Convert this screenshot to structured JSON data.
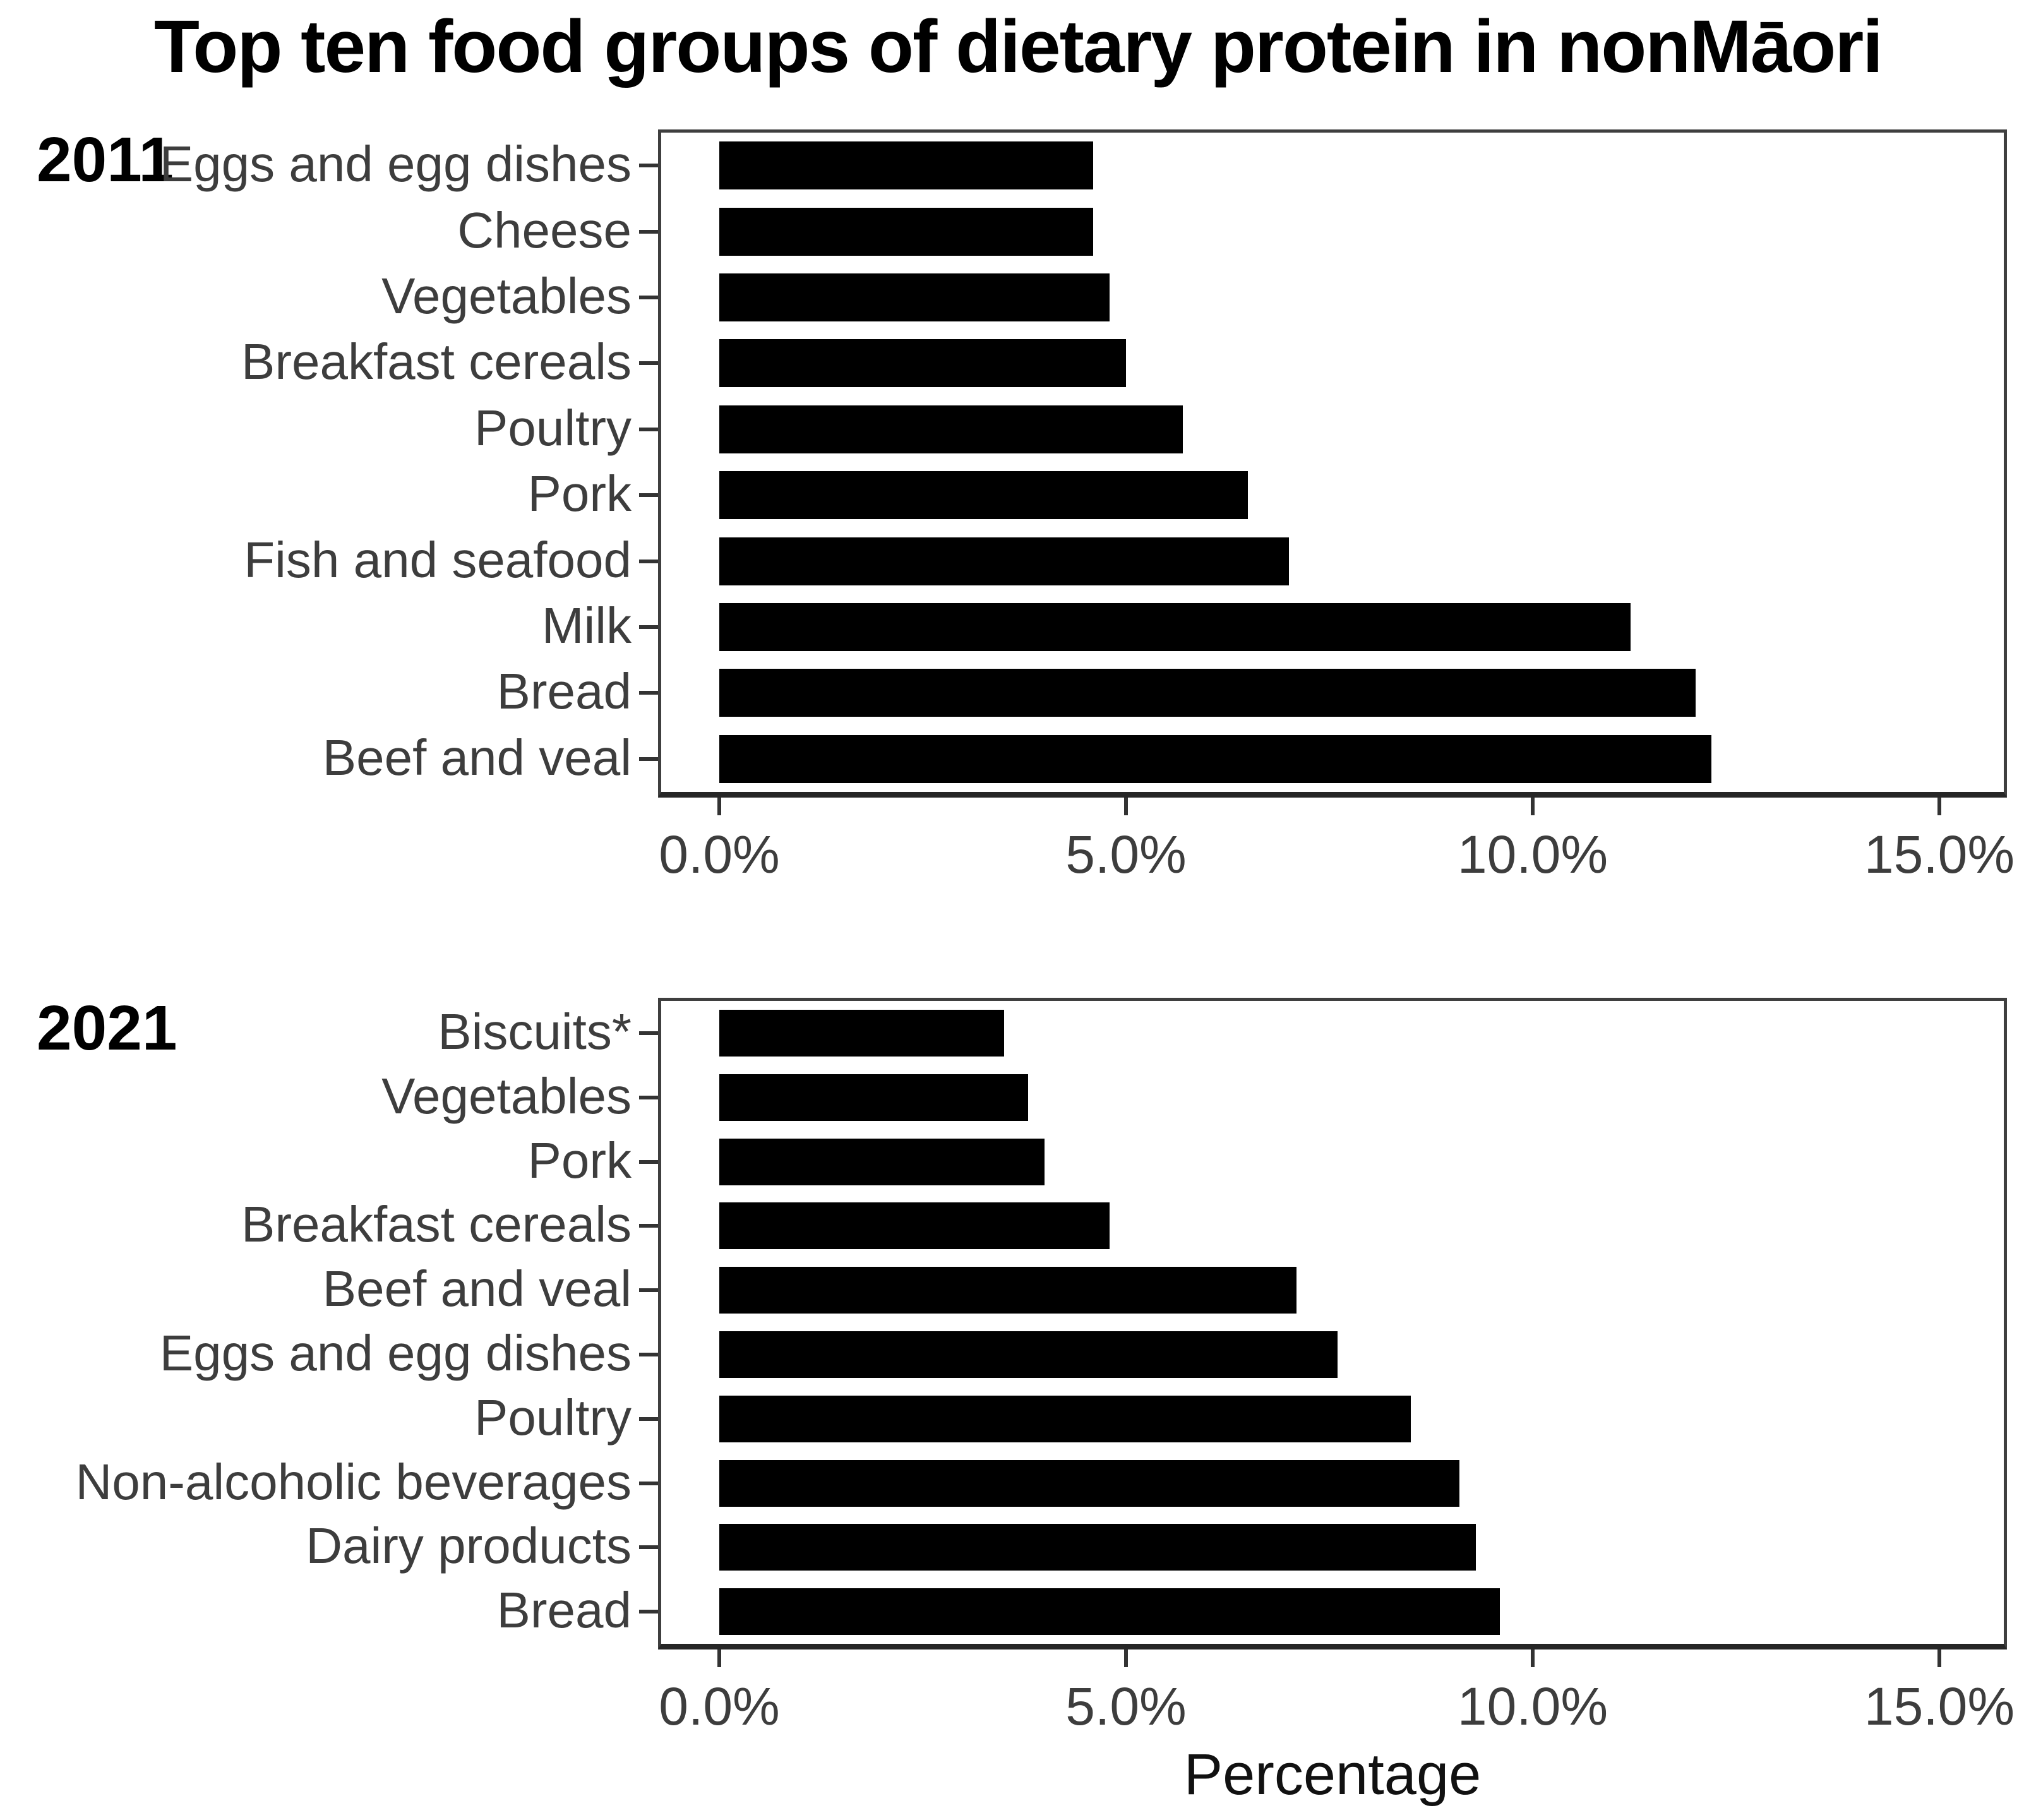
{
  "title": "Top ten food groups of dietary protein in nonMāori",
  "axis": {
    "title": "Percentage",
    "tick_values": [
      0,
      5,
      10,
      15
    ],
    "tick_labels": [
      "0.0%",
      "5.0%",
      "10.0%",
      "15.0%"
    ],
    "min": 0,
    "max": 15
  },
  "colors": {
    "bar": "#000000",
    "panel_border": "#3f3f3f",
    "axis_line": "#262626",
    "tick": "#333333",
    "text": "#3d3d3d",
    "title_text": "#000000"
  },
  "chart_data": [
    {
      "type": "bar",
      "orientation": "horizontal",
      "year": "2011",
      "title": "Top ten food groups of dietary protein in nonMāori",
      "xlabel": "Percentage",
      "xlim": [
        0,
        15.5
      ],
      "grid": false,
      "categories_top_to_bottom": [
        "Eggs and egg dishes",
        "Cheese",
        "Vegetables",
        "Breakfast cereals",
        "Poultry",
        "Pork",
        "Fish and seafood",
        "Milk",
        "Bread",
        "Beef and veal"
      ],
      "values_percent": [
        4.6,
        4.6,
        4.8,
        5.0,
        5.7,
        6.5,
        7.0,
        11.2,
        12.0,
        12.2
      ]
    },
    {
      "type": "bar",
      "orientation": "horizontal",
      "year": "2021",
      "xlabel": "Percentage",
      "xlim": [
        0,
        15.5
      ],
      "grid": false,
      "categories_top_to_bottom": [
        "Biscuits*",
        "Vegetables",
        "Pork",
        "Breakfast cereals",
        "Beef and veal",
        "Eggs and egg dishes",
        "Poultry",
        "Non-alcoholic beverages",
        "Dairy products",
        "Bread"
      ],
      "values_percent": [
        3.5,
        3.8,
        4.0,
        4.8,
        7.1,
        7.6,
        8.5,
        9.1,
        9.3,
        9.6
      ]
    }
  ]
}
